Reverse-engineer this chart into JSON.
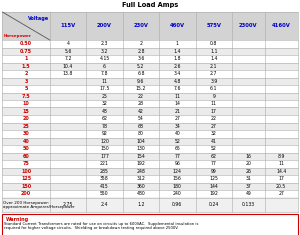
{
  "title": "Full Load Amps",
  "col_headers": [
    "Voltage",
    "115V",
    "200V",
    "230V",
    "460V",
    "575V",
    "2300V",
    "4160V"
  ],
  "rows": [
    [
      "0.50",
      "4",
      "2.3",
      "2",
      "1",
      "0.8",
      "",
      ""
    ],
    [
      "0.75",
      "5.6",
      "3.2",
      "2.8",
      "1.4",
      "1.1",
      "",
      ""
    ],
    [
      "1",
      "7.2",
      "4.15",
      "3.6",
      "1.8",
      "1.4",
      "",
      ""
    ],
    [
      "1.5",
      "10.4",
      "6",
      "5.2",
      "2.6",
      "2.1",
      "",
      ""
    ],
    [
      "2",
      "13.8",
      "7.8",
      "6.8",
      "3.4",
      "2.7",
      "",
      ""
    ],
    [
      "3",
      "",
      "11",
      "9.6",
      "4.8",
      "3.9",
      "",
      ""
    ],
    [
      "5",
      "",
      "17.5",
      "15.2",
      "7.6",
      "6.1",
      "",
      ""
    ],
    [
      "7.5",
      "",
      "25",
      "22",
      "11",
      "9",
      "",
      ""
    ],
    [
      "10",
      "",
      "32",
      "28",
      "14",
      "11",
      "",
      ""
    ],
    [
      "15",
      "",
      "48",
      "42",
      "21",
      "17",
      "",
      ""
    ],
    [
      "20",
      "",
      "62",
      "54",
      "27",
      "22",
      "",
      ""
    ],
    [
      "25",
      "",
      "78",
      "68",
      "34",
      "27",
      "",
      ""
    ],
    [
      "30",
      "",
      "92",
      "80",
      "40",
      "32",
      "",
      ""
    ],
    [
      "40",
      "",
      "120",
      "104",
      "52",
      "41",
      "",
      ""
    ],
    [
      "50",
      "",
      "150",
      "130",
      "65",
      "52",
      "",
      ""
    ],
    [
      "60",
      "",
      "177",
      "154",
      "77",
      "62",
      "16",
      "8.9"
    ],
    [
      "75",
      "",
      "221",
      "192",
      "96",
      "77",
      "20",
      "11"
    ],
    [
      "100",
      "",
      "285",
      "248",
      "124",
      "99",
      "26",
      "14.4"
    ],
    [
      "125",
      "",
      "358",
      "312",
      "156",
      "125",
      "31",
      "17"
    ],
    [
      "150",
      "",
      "415",
      "360",
      "180",
      "144",
      "37",
      "20.5"
    ],
    [
      "200",
      "",
      "550",
      "480",
      "240",
      "192",
      "49",
      "27"
    ]
  ],
  "footer_label1": "Over 200 Horsepower:",
  "footer_label2": "approximate Amperes/Horsepower",
  "footer_values": [
    "",
    "2.75",
    "2.4",
    "1.2",
    "0.96",
    "0.24",
    "0.133"
  ],
  "warning_title": "Warning",
  "warning_text1": "Standard Current Transformers are rated for use on circuits up to 600VAC.  Supplemental insulation is",
  "warning_text2": "required for higher voltage circuits.  Shielding or breakdown testing required above 2500V.",
  "header_blue": "#0000CC",
  "hp_red": "#CC0000",
  "line_color": "#AAAAAA",
  "alt_row": "#EBEBEB",
  "header_bg": "#D3D3D3",
  "footer_bg": "#F0F0F0",
  "warn_border": "#CC0000"
}
